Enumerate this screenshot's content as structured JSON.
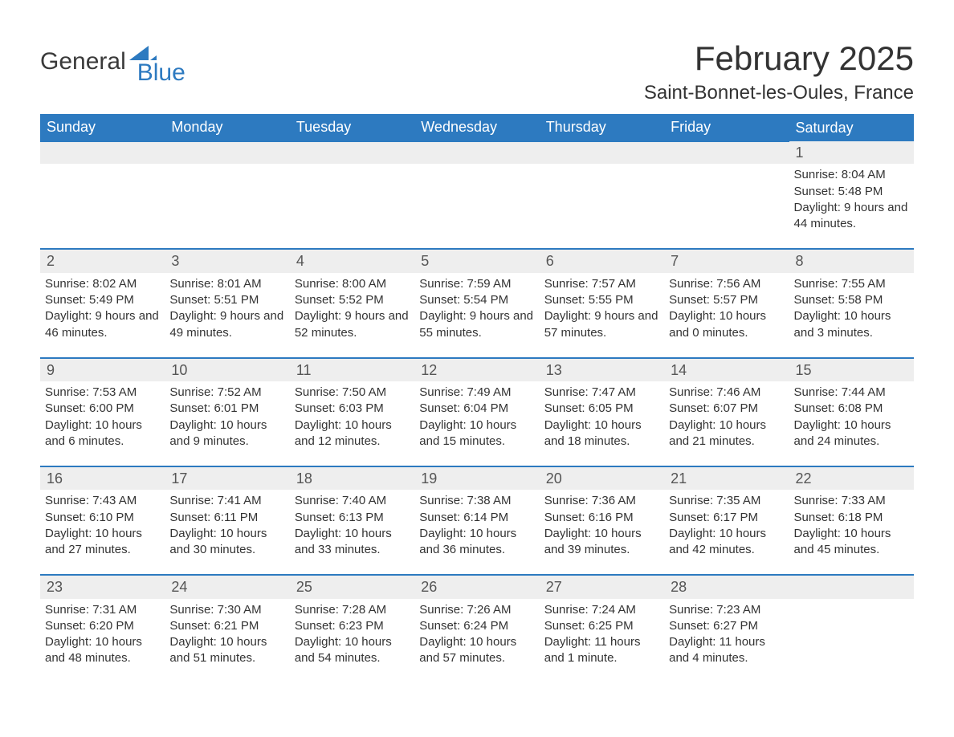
{
  "logo": {
    "text1": "General",
    "text2": "Blue",
    "accent_color": "#2d7ac0"
  },
  "title": "February 2025",
  "location": "Saint-Bonnet-les-Oules, France",
  "colors": {
    "header_bg": "#2d7ac0",
    "header_text": "#ffffff",
    "daynum_bg": "#eeeeee",
    "row_border": "#2d7ac0",
    "text": "#333333"
  },
  "weekdays": [
    "Sunday",
    "Monday",
    "Tuesday",
    "Wednesday",
    "Thursday",
    "Friday",
    "Saturday"
  ],
  "weeks": [
    [
      null,
      null,
      null,
      null,
      null,
      null,
      {
        "n": "1",
        "sr": "Sunrise: 8:04 AM",
        "ss": "Sunset: 5:48 PM",
        "dl": "Daylight: 9 hours and 44 minutes."
      }
    ],
    [
      {
        "n": "2",
        "sr": "Sunrise: 8:02 AM",
        "ss": "Sunset: 5:49 PM",
        "dl": "Daylight: 9 hours and 46 minutes."
      },
      {
        "n": "3",
        "sr": "Sunrise: 8:01 AM",
        "ss": "Sunset: 5:51 PM",
        "dl": "Daylight: 9 hours and 49 minutes."
      },
      {
        "n": "4",
        "sr": "Sunrise: 8:00 AM",
        "ss": "Sunset: 5:52 PM",
        "dl": "Daylight: 9 hours and 52 minutes."
      },
      {
        "n": "5",
        "sr": "Sunrise: 7:59 AM",
        "ss": "Sunset: 5:54 PM",
        "dl": "Daylight: 9 hours and 55 minutes."
      },
      {
        "n": "6",
        "sr": "Sunrise: 7:57 AM",
        "ss": "Sunset: 5:55 PM",
        "dl": "Daylight: 9 hours and 57 minutes."
      },
      {
        "n": "7",
        "sr": "Sunrise: 7:56 AM",
        "ss": "Sunset: 5:57 PM",
        "dl": "Daylight: 10 hours and 0 minutes."
      },
      {
        "n": "8",
        "sr": "Sunrise: 7:55 AM",
        "ss": "Sunset: 5:58 PM",
        "dl": "Daylight: 10 hours and 3 minutes."
      }
    ],
    [
      {
        "n": "9",
        "sr": "Sunrise: 7:53 AM",
        "ss": "Sunset: 6:00 PM",
        "dl": "Daylight: 10 hours and 6 minutes."
      },
      {
        "n": "10",
        "sr": "Sunrise: 7:52 AM",
        "ss": "Sunset: 6:01 PM",
        "dl": "Daylight: 10 hours and 9 minutes."
      },
      {
        "n": "11",
        "sr": "Sunrise: 7:50 AM",
        "ss": "Sunset: 6:03 PM",
        "dl": "Daylight: 10 hours and 12 minutes."
      },
      {
        "n": "12",
        "sr": "Sunrise: 7:49 AM",
        "ss": "Sunset: 6:04 PM",
        "dl": "Daylight: 10 hours and 15 minutes."
      },
      {
        "n": "13",
        "sr": "Sunrise: 7:47 AM",
        "ss": "Sunset: 6:05 PM",
        "dl": "Daylight: 10 hours and 18 minutes."
      },
      {
        "n": "14",
        "sr": "Sunrise: 7:46 AM",
        "ss": "Sunset: 6:07 PM",
        "dl": "Daylight: 10 hours and 21 minutes."
      },
      {
        "n": "15",
        "sr": "Sunrise: 7:44 AM",
        "ss": "Sunset: 6:08 PM",
        "dl": "Daylight: 10 hours and 24 minutes."
      }
    ],
    [
      {
        "n": "16",
        "sr": "Sunrise: 7:43 AM",
        "ss": "Sunset: 6:10 PM",
        "dl": "Daylight: 10 hours and 27 minutes."
      },
      {
        "n": "17",
        "sr": "Sunrise: 7:41 AM",
        "ss": "Sunset: 6:11 PM",
        "dl": "Daylight: 10 hours and 30 minutes."
      },
      {
        "n": "18",
        "sr": "Sunrise: 7:40 AM",
        "ss": "Sunset: 6:13 PM",
        "dl": "Daylight: 10 hours and 33 minutes."
      },
      {
        "n": "19",
        "sr": "Sunrise: 7:38 AM",
        "ss": "Sunset: 6:14 PM",
        "dl": "Daylight: 10 hours and 36 minutes."
      },
      {
        "n": "20",
        "sr": "Sunrise: 7:36 AM",
        "ss": "Sunset: 6:16 PM",
        "dl": "Daylight: 10 hours and 39 minutes."
      },
      {
        "n": "21",
        "sr": "Sunrise: 7:35 AM",
        "ss": "Sunset: 6:17 PM",
        "dl": "Daylight: 10 hours and 42 minutes."
      },
      {
        "n": "22",
        "sr": "Sunrise: 7:33 AM",
        "ss": "Sunset: 6:18 PM",
        "dl": "Daylight: 10 hours and 45 minutes."
      }
    ],
    [
      {
        "n": "23",
        "sr": "Sunrise: 7:31 AM",
        "ss": "Sunset: 6:20 PM",
        "dl": "Daylight: 10 hours and 48 minutes."
      },
      {
        "n": "24",
        "sr": "Sunrise: 7:30 AM",
        "ss": "Sunset: 6:21 PM",
        "dl": "Daylight: 10 hours and 51 minutes."
      },
      {
        "n": "25",
        "sr": "Sunrise: 7:28 AM",
        "ss": "Sunset: 6:23 PM",
        "dl": "Daylight: 10 hours and 54 minutes."
      },
      {
        "n": "26",
        "sr": "Sunrise: 7:26 AM",
        "ss": "Sunset: 6:24 PM",
        "dl": "Daylight: 10 hours and 57 minutes."
      },
      {
        "n": "27",
        "sr": "Sunrise: 7:24 AM",
        "ss": "Sunset: 6:25 PM",
        "dl": "Daylight: 11 hours and 1 minute."
      },
      {
        "n": "28",
        "sr": "Sunrise: 7:23 AM",
        "ss": "Sunset: 6:27 PM",
        "dl": "Daylight: 11 hours and 4 minutes."
      },
      null
    ]
  ]
}
